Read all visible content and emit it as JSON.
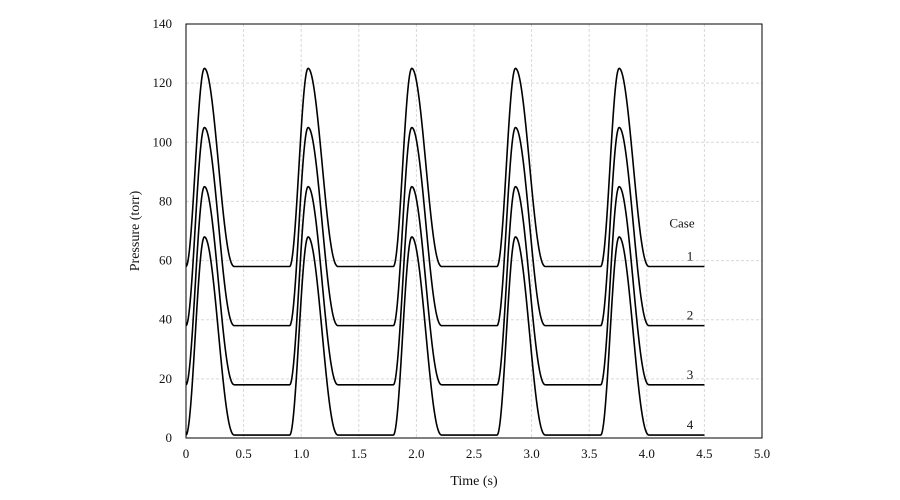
{
  "chart_data": {
    "type": "line",
    "title": "",
    "xlabel": "Time (s)",
    "ylabel": "Pressure (torr)",
    "xlim": [
      0,
      5.0
    ],
    "ylim": [
      0,
      140
    ],
    "x_ticks": [
      0,
      0.5,
      1.0,
      1.5,
      2.0,
      2.5,
      3.0,
      3.5,
      4.0,
      4.5,
      5.0
    ],
    "x_tick_labels": [
      "0",
      "0.5",
      "1.0",
      "1.5",
      "2.0",
      "2.5",
      "3.0",
      "3.5",
      "4.0",
      "4.5",
      "5.0"
    ],
    "y_ticks": [
      0,
      20,
      40,
      60,
      80,
      100,
      120,
      140
    ],
    "y_tick_labels": [
      "0",
      "20",
      "40",
      "60",
      "80",
      "100",
      "120",
      "140"
    ],
    "grid": true,
    "legend_title": "Case",
    "period": 0.9,
    "series": [
      {
        "name": "1",
        "baseline": 58,
        "peak": 125
      },
      {
        "name": "2",
        "baseline": 38,
        "peak": 105
      },
      {
        "name": "3",
        "baseline": 18,
        "peak": 85
      },
      {
        "name": "4",
        "baseline": 1,
        "peak": 68
      }
    ],
    "x_end": 4.5
  }
}
